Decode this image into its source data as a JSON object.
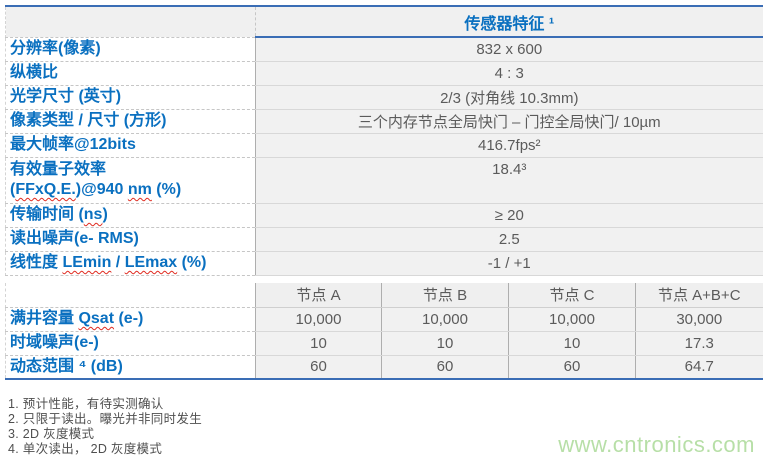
{
  "table": {
    "header": "传感器特征 ¹",
    "rows": [
      {
        "label": "分辨率(像素)",
        "value": "832 x 600"
      },
      {
        "label": "纵横比",
        "value": "4 : 3"
      },
      {
        "label": "光学尺寸 (英寸)",
        "value": "2/3 (对角线 10.3mm)"
      },
      {
        "label": "像素类型 / 尺寸 (方形)",
        "value": "三个内存节点全局快门 – 门控全局快门/ 10µm"
      },
      {
        "label": "最大帧率@12bits",
        "value": "416.7fps²"
      },
      {
        "label": "有效量子效率\n(FFxQ.E.)@940 nm (%)",
        "value": "18.4³"
      },
      {
        "label": "传输时间 (ns)",
        "value": "≥ 20"
      },
      {
        "label": "读出噪声(e- RMS)",
        "value": "2.5"
      },
      {
        "label": "线性度 LEmin / LEmax (%)",
        "value": "-1 / +1"
      }
    ],
    "node_columns": [
      "节点 A",
      "节点 B",
      "节点 C",
      "节点 A+B+C"
    ],
    "node_rows": [
      {
        "label": "满井容量 Qsat (e-)",
        "values": [
          "10,000",
          "10,000",
          "10,000",
          "30,000"
        ]
      },
      {
        "label": "时域噪声(e-)",
        "values": [
          "10",
          "10",
          "10",
          "17.3"
        ]
      },
      {
        "label": "动态范围 ⁴ (dB)",
        "values": [
          "60",
          "60",
          "60",
          "64.7"
        ]
      }
    ],
    "spellcheck_words": [
      "FFxQ.E.",
      "nm",
      "ns",
      "LEmin",
      "LEmax",
      "Qsat"
    ]
  },
  "footnotes": [
    "1. 预计性能，有待实测确认",
    "2. 只限于读出。曝光并非同时发生",
    "3. 2D 灰度模式",
    "4. 单次读出， 2D 灰度模式"
  ],
  "watermark": "www.cntronics.com",
  "colors": {
    "accent_blue": "#0a70c0",
    "border_blue": "#3a6db5",
    "value_gray": "#5b5b5b",
    "cell_bg": "#f1f1f1",
    "watermark_green": "#b7dfa7",
    "spellcheck_red": "#e02b20"
  }
}
